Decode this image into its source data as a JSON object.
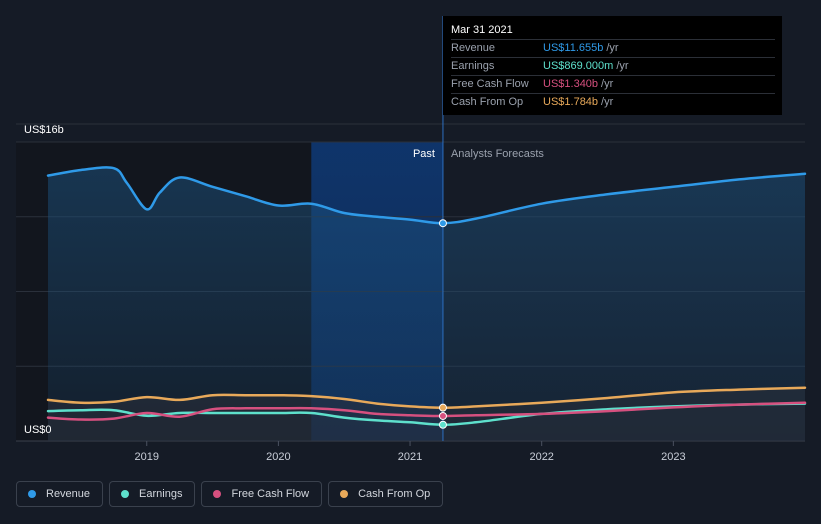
{
  "tooltip": {
    "date": "Mar 31 2021",
    "rows": [
      {
        "label": "Revenue",
        "value": "US$11.655b",
        "unit": "/yr",
        "color": "#2f9ae8"
      },
      {
        "label": "Earnings",
        "value": "US$869.000m",
        "unit": "/yr",
        "color": "#5ee0cc"
      },
      {
        "label": "Free Cash Flow",
        "value": "US$1.340b",
        "unit": "/yr",
        "color": "#d6507f"
      },
      {
        "label": "Cash From Op",
        "value": "US$1.784b",
        "unit": "/yr",
        "color": "#e8a95a"
      }
    ]
  },
  "chart_data": {
    "type": "line",
    "ylabel_top": "US$16b",
    "ylabel_bottom": "US$0",
    "ylim": [
      0,
      16
    ],
    "xlim": [
      2018.25,
      2024.0
    ],
    "x_ticks": [
      2019,
      2020,
      2021,
      2022,
      2023
    ],
    "x_tick_labels": [
      "2019",
      "2020",
      "2021",
      "2022",
      "2023"
    ],
    "divider_x": 2021.25,
    "highlight_start_x": 2020.25,
    "region_labels": {
      "past": "Past",
      "forecast": "Analysts Forecasts"
    },
    "grid": true,
    "series": [
      {
        "name": "Revenue",
        "color": "#2f9ae8",
        "x": [
          2018.25,
          2018.5,
          2018.75,
          2018.85,
          2019.0,
          2019.1,
          2019.25,
          2019.5,
          2019.75,
          2020.0,
          2020.25,
          2020.5,
          2020.75,
          2021.0,
          2021.25,
          2021.5,
          2022.0,
          2022.5,
          2023.0,
          2023.5,
          2024.0
        ],
        "y": [
          14.2,
          14.5,
          14.6,
          13.8,
          12.4,
          13.3,
          14.1,
          13.6,
          13.1,
          12.6,
          12.7,
          12.2,
          12.0,
          11.85,
          11.655,
          11.9,
          12.7,
          13.2,
          13.6,
          14.0,
          14.3
        ]
      },
      {
        "name": "Earnings",
        "color": "#5ee0cc",
        "x": [
          2018.25,
          2018.5,
          2018.75,
          2019.0,
          2019.25,
          2019.5,
          2019.75,
          2020.0,
          2020.25,
          2020.5,
          2020.75,
          2021.0,
          2021.25,
          2021.5,
          2022.0,
          2022.5,
          2023.0,
          2023.5,
          2024.0
        ],
        "y": [
          1.6,
          1.65,
          1.65,
          1.35,
          1.5,
          1.5,
          1.5,
          1.5,
          1.5,
          1.25,
          1.1,
          1.0,
          0.869,
          1.0,
          1.45,
          1.7,
          1.85,
          1.95,
          2.0
        ]
      },
      {
        "name": "Free Cash Flow",
        "color": "#d6507f",
        "x": [
          2018.25,
          2018.5,
          2018.75,
          2019.0,
          2019.25,
          2019.5,
          2019.75,
          2020.0,
          2020.25,
          2020.5,
          2020.75,
          2021.0,
          2021.25,
          2021.5,
          2022.0,
          2022.5,
          2023.0,
          2023.5,
          2024.0
        ],
        "y": [
          1.25,
          1.15,
          1.2,
          1.5,
          1.3,
          1.7,
          1.75,
          1.75,
          1.75,
          1.65,
          1.45,
          1.38,
          1.34,
          1.38,
          1.45,
          1.6,
          1.8,
          1.95,
          2.05
        ]
      },
      {
        "name": "Cash From Op",
        "color": "#e8a95a",
        "x": [
          2018.25,
          2018.5,
          2018.75,
          2019.0,
          2019.25,
          2019.5,
          2019.75,
          2020.0,
          2020.25,
          2020.5,
          2020.75,
          2021.0,
          2021.25,
          2021.5,
          2022.0,
          2022.5,
          2023.0,
          2023.5,
          2024.0
        ],
        "y": [
          2.2,
          2.05,
          2.1,
          2.35,
          2.2,
          2.45,
          2.45,
          2.45,
          2.4,
          2.25,
          2.0,
          1.85,
          1.784,
          1.85,
          2.05,
          2.3,
          2.6,
          2.75,
          2.85
        ]
      }
    ]
  },
  "legend": [
    {
      "label": "Revenue",
      "color": "#2f9ae8"
    },
    {
      "label": "Earnings",
      "color": "#5ee0cc"
    },
    {
      "label": "Free Cash Flow",
      "color": "#d6507f"
    },
    {
      "label": "Cash From Op",
      "color": "#e8a95a"
    }
  ]
}
